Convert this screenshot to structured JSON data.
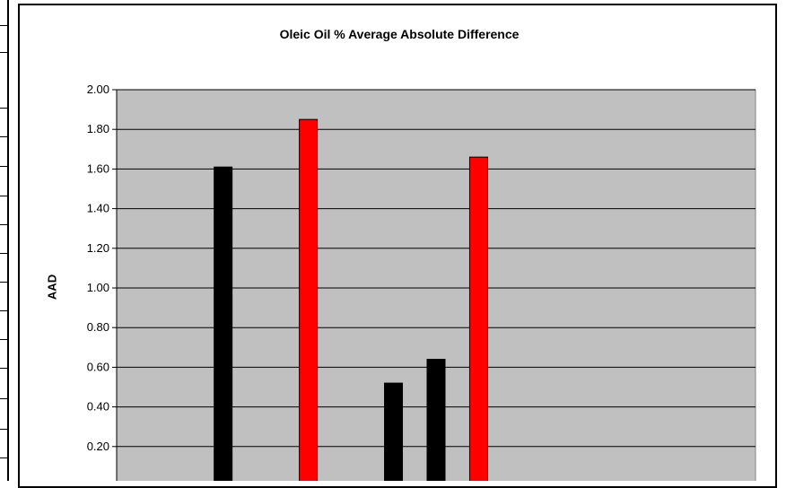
{
  "chart_data": {
    "type": "bar",
    "title": "Oleic Oil % Average Absolute Difference",
    "ylabel": "AAD",
    "xlabel": "",
    "ylim": [
      0,
      2.0
    ],
    "y_ticks": [
      "0.20",
      "0.40",
      "0.60",
      "0.80",
      "1.00",
      "1.20",
      "1.40",
      "1.60",
      "1.80",
      "2.00"
    ],
    "grid": true,
    "legend": "none",
    "bars": [
      {
        "slot": 2,
        "value": 1.61,
        "color": "#000000"
      },
      {
        "slot": 4,
        "value": 1.85,
        "color": "#ff0000"
      },
      {
        "slot": 6,
        "value": 0.52,
        "color": "#000000"
      },
      {
        "slot": 7,
        "value": 0.64,
        "color": "#000000"
      },
      {
        "slot": 8,
        "value": 1.66,
        "color": "#ff0000"
      }
    ],
    "slot_count": 15
  },
  "colors": {
    "plot_background": "#c0c0c0",
    "gridline": "#000000",
    "series_black": "#000000",
    "series_red": "#ff0000"
  }
}
